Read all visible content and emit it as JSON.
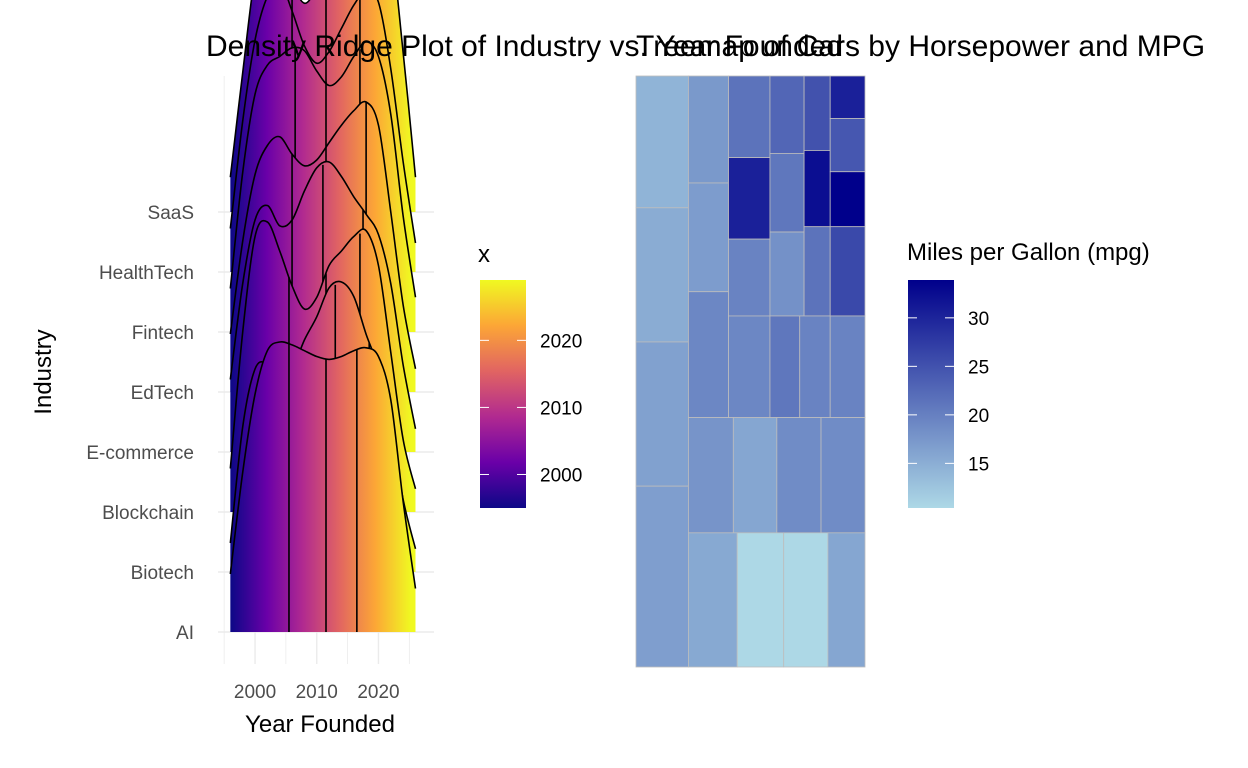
{
  "chart_data": [
    {
      "type": "density-ridge",
      "title": "Density Ridge Plot of Industry vs. Year Founded",
      "xlabel": "Year Founded",
      "ylabel": "Industry",
      "xlim": [
        1994,
        2029
      ],
      "x_ticks": [
        2000,
        2010,
        2020
      ],
      "x_tick_labels": [
        "2000",
        "2010",
        "2020"
      ],
      "categories": [
        "AI",
        "Biotech",
        "Blockchain",
        "E-commerce",
        "EdTech",
        "Fintech",
        "HealthTech",
        "SaaS"
      ],
      "quantile_lines": "quartiles",
      "grid": true,
      "fill_scale": {
        "name": "x",
        "palette": "plasma",
        "ticks": [
          2000,
          2010,
          2020
        ],
        "tick_labels": [
          "2000",
          "2010",
          "2020"
        ],
        "range": [
          1995,
          2029
        ],
        "colors": [
          "#0d0887",
          "#6a00a8",
          "#b12a90",
          "#e16462",
          "#fca636",
          "#f0f921"
        ]
      },
      "series": [
        {
          "name": "AI",
          "range": [
            1996,
            2026
          ],
          "quartiles": [
            2005.5,
            2011.5,
            2016.5
          ],
          "points": [
            [
              1996,
              0.2
            ],
            [
              1998,
              0.55
            ],
            [
              2000,
              0.82
            ],
            [
              2002,
              0.97
            ],
            [
              2004,
              1.0
            ],
            [
              2006,
              0.99
            ],
            [
              2008,
              0.97
            ],
            [
              2010,
              0.95
            ],
            [
              2012,
              0.94
            ],
            [
              2014,
              0.95
            ],
            [
              2016,
              0.97
            ],
            [
              2018,
              0.98
            ],
            [
              2020,
              0.95
            ],
            [
              2022,
              0.8
            ],
            [
              2024,
              0.45
            ],
            [
              2026,
              0.15
            ]
          ]
        },
        {
          "name": "Biotech",
          "range": [
            1996,
            2026
          ],
          "quartiles": [
            2006,
            2013,
            2018.5
          ],
          "points": [
            [
              1996,
              0.1
            ],
            [
              1998,
              0.5
            ],
            [
              2000,
              0.7
            ],
            [
              2002,
              0.72
            ],
            [
              2004,
              0.68
            ],
            [
              2006,
              0.7
            ],
            [
              2008,
              0.8
            ],
            [
              2010,
              0.88
            ],
            [
              2012,
              0.98
            ],
            [
              2014,
              1.0
            ],
            [
              2016,
              0.95
            ],
            [
              2018,
              0.82
            ],
            [
              2020,
              0.7
            ],
            [
              2022,
              0.5
            ],
            [
              2024,
              0.25
            ],
            [
              2026,
              0.08
            ]
          ]
        },
        {
          "name": "Blockchain",
          "range": [
            1996,
            2026
          ],
          "quartiles": [
            2005.5,
            2011.5,
            2017
          ],
          "points": [
            [
              1996,
              0.15
            ],
            [
              1998,
              0.62
            ],
            [
              2000,
              0.95
            ],
            [
              2002,
              1.0
            ],
            [
              2004,
              0.9
            ],
            [
              2006,
              0.78
            ],
            [
              2008,
              0.7
            ],
            [
              2010,
              0.74
            ],
            [
              2012,
              0.85
            ],
            [
              2014,
              0.9
            ],
            [
              2016,
              0.95
            ],
            [
              2018,
              0.97
            ],
            [
              2020,
              0.85
            ],
            [
              2022,
              0.55
            ],
            [
              2024,
              0.25
            ],
            [
              2026,
              0.08
            ]
          ]
        },
        {
          "name": "E-commerce",
          "range": [
            1996,
            2026
          ],
          "quartiles": [
            2006,
            2011,
            2017.5
          ],
          "points": [
            [
              1996,
              0.25
            ],
            [
              1998,
              0.58
            ],
            [
              2000,
              0.8
            ],
            [
              2002,
              0.85
            ],
            [
              2004,
              0.78
            ],
            [
              2006,
              0.8
            ],
            [
              2008,
              0.9
            ],
            [
              2010,
              0.98
            ],
            [
              2012,
              1.0
            ],
            [
              2014,
              0.95
            ],
            [
              2016,
              0.88
            ],
            [
              2018,
              0.82
            ],
            [
              2020,
              0.75
            ],
            [
              2022,
              0.58
            ],
            [
              2024,
              0.3
            ],
            [
              2026,
              0.08
            ]
          ]
        },
        {
          "name": "EdTech",
          "range": [
            1996,
            2026
          ],
          "quartiles": [
            2006,
            2011.5,
            2018
          ],
          "points": [
            [
              1996,
              0.2
            ],
            [
              1998,
              0.52
            ],
            [
              2000,
              0.75
            ],
            [
              2002,
              0.85
            ],
            [
              2004,
              0.88
            ],
            [
              2006,
              0.82
            ],
            [
              2008,
              0.78
            ],
            [
              2010,
              0.8
            ],
            [
              2012,
              0.86
            ],
            [
              2014,
              0.92
            ],
            [
              2016,
              0.97
            ],
            [
              2018,
              1.0
            ],
            [
              2020,
              0.92
            ],
            [
              2022,
              0.62
            ],
            [
              2024,
              0.3
            ],
            [
              2026,
              0.08
            ]
          ]
        },
        {
          "name": "Fintech",
          "range": [
            1996,
            2026
          ],
          "quartiles": [
            2006.5,
            2011.5,
            2017
          ],
          "points": [
            [
              1996,
              0.15
            ],
            [
              1998,
              0.55
            ],
            [
              2000,
              0.82
            ],
            [
              2002,
              0.92
            ],
            [
              2004,
              0.95
            ],
            [
              2006,
              0.98
            ],
            [
              2008,
              0.97
            ],
            [
              2010,
              0.9
            ],
            [
              2012,
              0.85
            ],
            [
              2014,
              0.88
            ],
            [
              2016,
              0.95
            ],
            [
              2018,
              1.0
            ],
            [
              2020,
              0.95
            ],
            [
              2022,
              0.75
            ],
            [
              2024,
              0.4
            ],
            [
              2026,
              0.12
            ]
          ]
        },
        {
          "name": "HealthTech",
          "range": [
            1996,
            2026
          ],
          "quartiles": [
            2006,
            2011.5,
            2017
          ],
          "points": [
            [
              1996,
              0.15
            ],
            [
              1998,
              0.52
            ],
            [
              2000,
              0.8
            ],
            [
              2002,
              0.95
            ],
            [
              2004,
              1.0
            ],
            [
              2006,
              0.9
            ],
            [
              2008,
              0.78
            ],
            [
              2010,
              0.72
            ],
            [
              2012,
              0.76
            ],
            [
              2014,
              0.84
            ],
            [
              2016,
              0.92
            ],
            [
              2018,
              0.97
            ],
            [
              2020,
              0.93
            ],
            [
              2022,
              0.7
            ],
            [
              2024,
              0.38
            ],
            [
              2026,
              0.1
            ]
          ]
        },
        {
          "name": "SaaS",
          "range": [
            1996,
            2026
          ],
          "quartiles": [
            2006,
            2011.5,
            2017
          ],
          "points": [
            [
              1996,
              0.12
            ],
            [
              1998,
              0.48
            ],
            [
              2000,
              0.82
            ],
            [
              2002,
              1.0
            ],
            [
              2004,
              0.96
            ],
            [
              2006,
              0.8
            ],
            [
              2008,
              0.72
            ],
            [
              2010,
              0.78
            ],
            [
              2012,
              0.92
            ],
            [
              2014,
              1.0
            ],
            [
              2016,
              0.97
            ],
            [
              2018,
              0.92
            ],
            [
              2020,
              0.96
            ],
            [
              2022,
              0.92
            ],
            [
              2024,
              0.55
            ],
            [
              2026,
              0.12
            ]
          ]
        }
      ]
    },
    {
      "type": "treemap",
      "title": "Treemap of Cars by Horsepower and MPG",
      "legend": {
        "title": "Miles per Gallon (mpg)",
        "ticks": [
          15,
          20,
          25,
          30
        ],
        "tick_labels": [
          "15",
          "20",
          "25",
          "30"
        ],
        "range": [
          10.4,
          33.9
        ],
        "low_color": "#add8e6",
        "high_color": "#00008b"
      },
      "tiles": [
        {
          "x0": 0.0,
          "y0": 0.0,
          "x1": 0.229,
          "y1": 0.223,
          "mpg": 14.3
        },
        {
          "x0": 0.0,
          "y0": 0.223,
          "x1": 0.229,
          "y1": 0.45,
          "mpg": 15.2
        },
        {
          "x0": 0.0,
          "y0": 0.45,
          "x1": 0.229,
          "y1": 0.694,
          "mpg": 16.4
        },
        {
          "x0": 0.0,
          "y0": 0.694,
          "x1": 0.229,
          "y1": 1.0,
          "mpg": 16.7
        },
        {
          "x0": 0.229,
          "y0": 0.0,
          "x1": 0.404,
          "y1": 0.181,
          "mpg": 17.3
        },
        {
          "x0": 0.229,
          "y0": 0.181,
          "x1": 0.404,
          "y1": 0.365,
          "mpg": 16.9
        },
        {
          "x0": 0.229,
          "y0": 0.365,
          "x1": 0.404,
          "y1": 0.578,
          "mpg": 19.2
        },
        {
          "x0": 0.404,
          "y0": 0.0,
          "x1": 0.585,
          "y1": 0.138,
          "mpg": 21.4
        },
        {
          "x0": 0.404,
          "y0": 0.138,
          "x1": 0.585,
          "y1": 0.276,
          "mpg": 30.4
        },
        {
          "x0": 0.404,
          "y0": 0.276,
          "x1": 0.585,
          "y1": 0.426,
          "mpg": 19.7
        },
        {
          "x0": 0.585,
          "y0": 0.0,
          "x1": 0.734,
          "y1": 0.131,
          "mpg": 22.8
        },
        {
          "x0": 0.585,
          "y0": 0.131,
          "x1": 0.734,
          "y1": 0.264,
          "mpg": 21.0
        },
        {
          "x0": 0.585,
          "y0": 0.264,
          "x1": 0.734,
          "y1": 0.406,
          "mpg": 18.1
        },
        {
          "x0": 0.734,
          "y0": 0.0,
          "x1": 0.848,
          "y1": 0.126,
          "mpg": 25.0
        },
        {
          "x0": 0.734,
          "y0": 0.126,
          "x1": 0.848,
          "y1": 0.255,
          "mpg": 32.4
        },
        {
          "x0": 0.734,
          "y0": 0.255,
          "x1": 0.848,
          "y1": 0.406,
          "mpg": 21.4
        },
        {
          "x0": 0.848,
          "y0": 0.0,
          "x1": 1.0,
          "y1": 0.072,
          "mpg": 30.4
        },
        {
          "x0": 0.848,
          "y0": 0.072,
          "x1": 1.0,
          "y1": 0.162,
          "mpg": 24.4
        },
        {
          "x0": 0.848,
          "y0": 0.162,
          "x1": 1.0,
          "y1": 0.255,
          "mpg": 33.9
        },
        {
          "x0": 0.848,
          "y0": 0.255,
          "x1": 1.0,
          "y1": 0.406,
          "mpg": 26.0
        },
        {
          "x0": 0.404,
          "y0": 0.406,
          "x1": 0.585,
          "y1": 0.578,
          "mpg": 19.2
        },
        {
          "x0": 0.585,
          "y0": 0.406,
          "x1": 0.715,
          "y1": 0.578,
          "mpg": 21.0
        },
        {
          "x0": 0.715,
          "y0": 0.406,
          "x1": 0.848,
          "y1": 0.578,
          "mpg": 19.7
        },
        {
          "x0": 0.848,
          "y0": 0.406,
          "x1": 1.0,
          "y1": 0.578,
          "mpg": 19.7
        },
        {
          "x0": 0.229,
          "y0": 0.578,
          "x1": 0.425,
          "y1": 0.773,
          "mpg": 17.8
        },
        {
          "x0": 0.425,
          "y0": 0.578,
          "x1": 0.615,
          "y1": 0.773,
          "mpg": 15.8
        },
        {
          "x0": 0.615,
          "y0": 0.578,
          "x1": 0.808,
          "y1": 0.773,
          "mpg": 18.7
        },
        {
          "x0": 0.808,
          "y0": 0.578,
          "x1": 1.0,
          "y1": 0.773,
          "mpg": 18.7
        },
        {
          "x0": 0.229,
          "y0": 0.773,
          "x1": 0.442,
          "y1": 1.0,
          "mpg": 15.5
        },
        {
          "x0": 0.442,
          "y0": 0.773,
          "x1": 0.645,
          "y1": 1.0,
          "mpg": 10.4
        },
        {
          "x0": 0.645,
          "y0": 0.773,
          "x1": 0.838,
          "y1": 1.0,
          "mpg": 10.4
        },
        {
          "x0": 0.838,
          "y0": 0.773,
          "x1": 1.0,
          "y1": 1.0,
          "mpg": 15.8
        }
      ]
    }
  ]
}
